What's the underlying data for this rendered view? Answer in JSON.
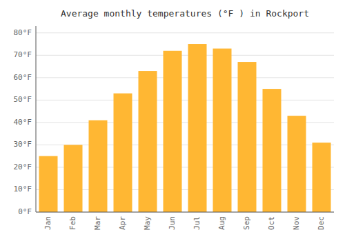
{
  "chart_data": {
    "type": "bar",
    "title": "Average monthly temperatures (°F ) in Rockport",
    "categories": [
      "Jan",
      "Feb",
      "Mar",
      "Apr",
      "May",
      "Jun",
      "Jul",
      "Aug",
      "Sep",
      "Oct",
      "Nov",
      "Dec"
    ],
    "values": [
      25,
      30,
      41,
      53,
      63,
      72,
      75,
      73,
      67,
      55,
      43,
      31
    ],
    "color": "#FFB733",
    "ylim": [
      0,
      83
    ],
    "yticks": [
      {
        "value": 0,
        "label": "0°F"
      },
      {
        "value": 10,
        "label": "10°F"
      },
      {
        "value": 20,
        "label": "20°F"
      },
      {
        "value": 30,
        "label": "30°F"
      },
      {
        "value": 40,
        "label": "40°F"
      },
      {
        "value": 50,
        "label": "50°F"
      },
      {
        "value": 60,
        "label": "60°F"
      },
      {
        "value": 70,
        "label": "70°F"
      },
      {
        "value": 80,
        "label": "80°F"
      }
    ],
    "grid": true
  }
}
